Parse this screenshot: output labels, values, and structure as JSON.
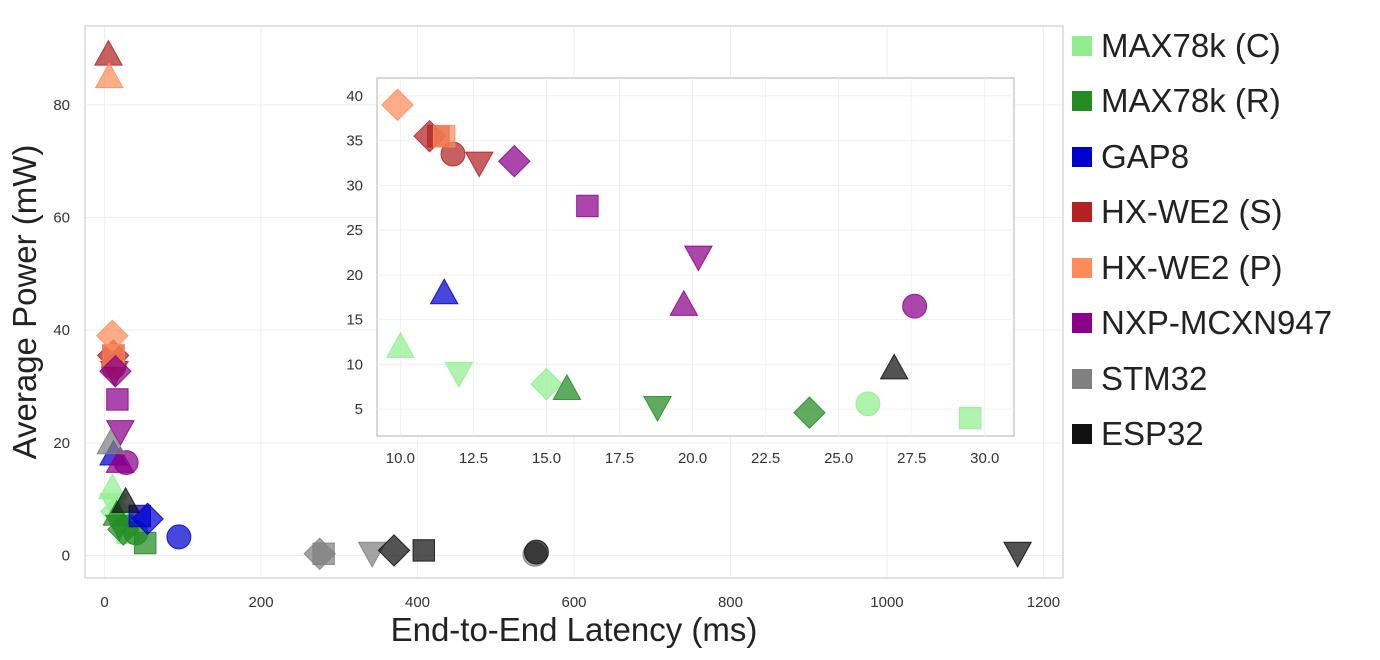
{
  "chart_data": {
    "type": "scatter",
    "xlabel": "End-to-End Latency (ms)",
    "ylabel": "Average Power (mW)",
    "xlim": [
      -25,
      1225
    ],
    "ylim": [
      -4,
      94
    ],
    "xticks": [
      "0",
      "200",
      "400",
      "600",
      "800",
      "1000",
      "1200"
    ],
    "xtick_values": [
      0,
      200,
      400,
      600,
      800,
      1000,
      1200
    ],
    "yticks": [
      "0",
      "20",
      "40",
      "60",
      "80"
    ],
    "ytick_values": [
      0,
      20,
      40,
      60,
      80
    ],
    "grid": true,
    "legend_position": "outside-right",
    "legend": [
      {
        "label": "MAX78k (C)",
        "color": "#90ee90"
      },
      {
        "label": "MAX78k (R)",
        "color": "#228b22"
      },
      {
        "label": "GAP8",
        "color": "#0000cd"
      },
      {
        "label": "HX-WE2 (S)",
        "color": "#b22222"
      },
      {
        "label": "HX-WE2 (P)",
        "color": "#ff8c5a"
      },
      {
        "label": "NXP-MCXN947",
        "color": "#8b008b"
      },
      {
        "label": "STM32",
        "color": "#808080"
      },
      {
        "label": "ESP32",
        "color": "#111111"
      }
    ],
    "points": [
      {
        "series": "MAX78k (C)",
        "shape": "square",
        "x": 29.5,
        "y": 4.0
      },
      {
        "series": "MAX78k (C)",
        "shape": "circle",
        "x": 26.0,
        "y": 5.6
      },
      {
        "series": "MAX78k (C)",
        "shape": "diamond",
        "x": 15.0,
        "y": 7.8
      },
      {
        "series": "MAX78k (C)",
        "shape": "triangle-down",
        "x": 12.0,
        "y": 9.0
      },
      {
        "series": "MAX78k (C)",
        "shape": "triangle-up",
        "x": 10.0,
        "y": 12.0
      },
      {
        "series": "MAX78k (R)",
        "shape": "diamond",
        "x": 24.0,
        "y": 4.6
      },
      {
        "series": "MAX78k (R)",
        "shape": "triangle-down",
        "x": 18.8,
        "y": 5.2
      },
      {
        "series": "MAX78k (R)",
        "shape": "triangle-up",
        "x": 15.7,
        "y": 7.3
      },
      {
        "series": "MAX78k (R)",
        "shape": "square",
        "x": 52,
        "y": 2.2
      },
      {
        "series": "MAX78k (R)",
        "shape": "circle",
        "x": 40,
        "y": 4.0
      },
      {
        "series": "GAP8",
        "shape": "triangle-up",
        "x": 11.5,
        "y": 18.0
      },
      {
        "series": "GAP8",
        "shape": "circle",
        "x": 95,
        "y": 3.3
      },
      {
        "series": "GAP8",
        "shape": "diamond",
        "x": 55,
        "y": 6.5
      },
      {
        "series": "GAP8",
        "shape": "square",
        "x": 45,
        "y": 7.0
      },
      {
        "series": "HX-WE2 (S)",
        "shape": "diamond",
        "x": 11.0,
        "y": 35.5
      },
      {
        "series": "HX-WE2 (S)",
        "shape": "square",
        "x": 11.3,
        "y": 35.5
      },
      {
        "series": "HX-WE2 (S)",
        "shape": "circle",
        "x": 11.8,
        "y": 33.5
      },
      {
        "series": "HX-WE2 (S)",
        "shape": "triangle-down",
        "x": 12.7,
        "y": 32.5
      },
      {
        "series": "HX-WE2 (S)",
        "shape": "triangle-up",
        "x": 5,
        "y": 89.0
      },
      {
        "series": "HX-WE2 (P)",
        "shape": "diamond",
        "x": 9.9,
        "y": 39.0
      },
      {
        "series": "HX-WE2 (P)",
        "shape": "square",
        "x": 11.5,
        "y": 35.5
      },
      {
        "series": "HX-WE2 (P)",
        "shape": "triangle-up",
        "x": 6,
        "y": 85.0
      },
      {
        "series": "NXP-MCXN947",
        "shape": "diamond",
        "x": 13.9,
        "y": 32.7
      },
      {
        "series": "NXP-MCXN947",
        "shape": "square",
        "x": 16.4,
        "y": 27.7
      },
      {
        "series": "NXP-MCXN947",
        "shape": "triangle-down",
        "x": 20.2,
        "y": 22.0
      },
      {
        "series": "NXP-MCXN947",
        "shape": "triangle-up",
        "x": 19.7,
        "y": 16.7
      },
      {
        "series": "NXP-MCXN947",
        "shape": "circle",
        "x": 27.6,
        "y": 16.5
      },
      {
        "series": "STM32",
        "shape": "triangle-up",
        "x": 8,
        "y": 20.0
      },
      {
        "series": "STM32",
        "shape": "square",
        "x": 280,
        "y": 0.3
      },
      {
        "series": "STM32",
        "shape": "diamond",
        "x": 275,
        "y": 0.3
      },
      {
        "series": "STM32",
        "shape": "triangle-down",
        "x": 342,
        "y": 0.4
      },
      {
        "series": "STM32",
        "shape": "circle",
        "x": 550,
        "y": 0.2
      },
      {
        "series": "ESP32",
        "shape": "triangle-up",
        "x": 26.9,
        "y": 9.6
      },
      {
        "series": "ESP32",
        "shape": "diamond",
        "x": 370,
        "y": 0.9
      },
      {
        "series": "ESP32",
        "shape": "square",
        "x": 408,
        "y": 0.9
      },
      {
        "series": "ESP32",
        "shape": "circle",
        "x": 552,
        "y": 0.6
      },
      {
        "series": "ESP32",
        "shape": "triangle-down",
        "x": 1167,
        "y": 0.4
      }
    ],
    "inset": {
      "xlim": [
        9.2,
        31.0
      ],
      "ylim": [
        2.0,
        42.0
      ],
      "xticks": [
        "10.0",
        "12.5",
        "15.0",
        "17.5",
        "20.0",
        "22.5",
        "25.0",
        "27.5",
        "30.0"
      ],
      "xtick_values": [
        10.0,
        12.5,
        15.0,
        17.5,
        20.0,
        22.5,
        25.0,
        27.5,
        30.0
      ],
      "yticks": [
        "5",
        "10",
        "15",
        "20",
        "25",
        "30",
        "35",
        "40"
      ],
      "ytick_values": [
        5,
        10,
        15,
        20,
        25,
        30,
        35,
        40
      ]
    }
  }
}
